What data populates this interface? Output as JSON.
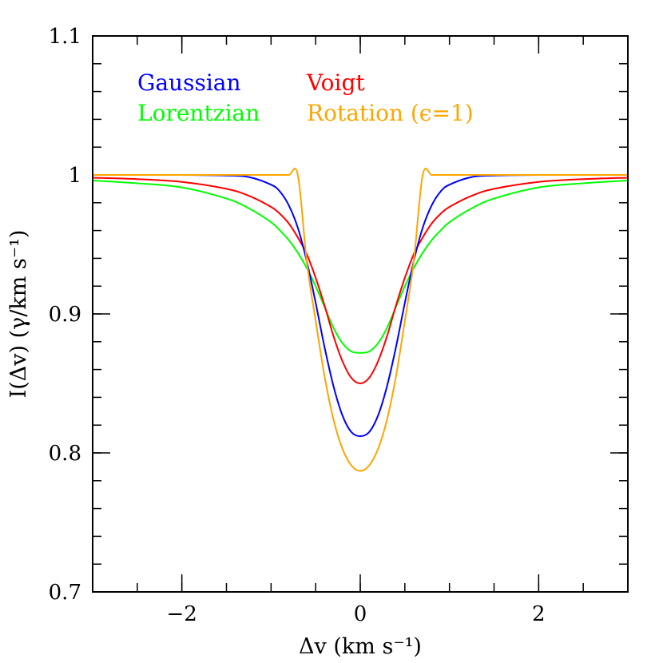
{
  "chart_data": {
    "type": "line",
    "title": "",
    "xlabel": "Δv (km s⁻¹)",
    "ylabel": "I(Δv) (γ/km s⁻¹)",
    "xlim": [
      -3,
      3
    ],
    "ylim": [
      0.7,
      1.1
    ],
    "x_ticks": [
      -2,
      0,
      2
    ],
    "x_tick_labels": [
      "−2",
      "0",
      "2"
    ],
    "y_ticks": [
      0.7,
      0.8,
      0.9,
      1.0,
      1.1
    ],
    "y_tick_labels": [
      "0.7",
      "0.8",
      "0.9",
      "1",
      "1.1"
    ],
    "grid": false,
    "legend_position": "top-left",
    "x": [
      -3.0,
      -2.5,
      -2.0,
      -1.5,
      -1.25,
      -1.0,
      -0.9,
      -0.8,
      -0.7,
      -0.6,
      -0.5,
      -0.4,
      -0.3,
      -0.2,
      -0.1,
      0.0,
      0.1,
      0.2,
      0.3,
      0.4,
      0.5,
      0.6,
      0.7,
      0.8,
      0.9,
      1.0,
      1.25,
      1.5,
      2.0,
      2.5,
      3.0
    ],
    "series": [
      {
        "name": "Gaussian",
        "color": "#0000ff",
        "values": [
          1.0,
          1.0,
          1.0,
          0.9996,
          0.9985,
          0.993,
          0.988,
          0.978,
          0.962,
          0.938,
          0.908,
          0.876,
          0.848,
          0.827,
          0.815,
          0.812,
          0.815,
          0.827,
          0.848,
          0.876,
          0.908,
          0.938,
          0.962,
          0.978,
          0.988,
          0.993,
          0.9985,
          0.9996,
          1.0,
          1.0,
          1.0
        ]
      },
      {
        "name": "Voigt",
        "color": "#ff0000",
        "values": [
          0.998,
          0.997,
          0.995,
          0.99,
          0.985,
          0.977,
          0.972,
          0.965,
          0.955,
          0.943,
          0.926,
          0.906,
          0.884,
          0.866,
          0.854,
          0.85,
          0.854,
          0.866,
          0.884,
          0.906,
          0.926,
          0.943,
          0.955,
          0.965,
          0.972,
          0.977,
          0.985,
          0.99,
          0.995,
          0.997,
          0.998
        ]
      },
      {
        "name": "Lorentzian",
        "color": "#00ff00",
        "values": [
          0.996,
          0.994,
          0.991,
          0.983,
          0.976,
          0.966,
          0.96,
          0.953,
          0.944,
          0.933,
          0.92,
          0.905,
          0.89,
          0.879,
          0.873,
          0.872,
          0.873,
          0.879,
          0.89,
          0.905,
          0.92,
          0.933,
          0.944,
          0.953,
          0.96,
          0.966,
          0.976,
          0.983,
          0.991,
          0.994,
          0.996
        ]
      },
      {
        "name": "Rotation (ϵ=1)",
        "color": "#ffa500",
        "values": [
          1.0,
          1.0,
          1.0,
          1.0,
          1.0,
          1.0,
          1.0,
          1.0,
          1.0,
          0.938,
          0.895,
          0.855,
          0.824,
          0.803,
          0.791,
          0.787,
          0.791,
          0.803,
          0.824,
          0.855,
          0.895,
          0.938,
          1.0,
          1.0,
          1.0,
          1.0,
          1.0,
          1.0,
          1.0,
          1.0,
          1.0
        ]
      }
    ],
    "legend": {
      "gaussian": "Gaussian",
      "voigt": "Voigt",
      "lorentzian": "Lorentzian",
      "rotation": "Rotation (ϵ=1)"
    }
  }
}
